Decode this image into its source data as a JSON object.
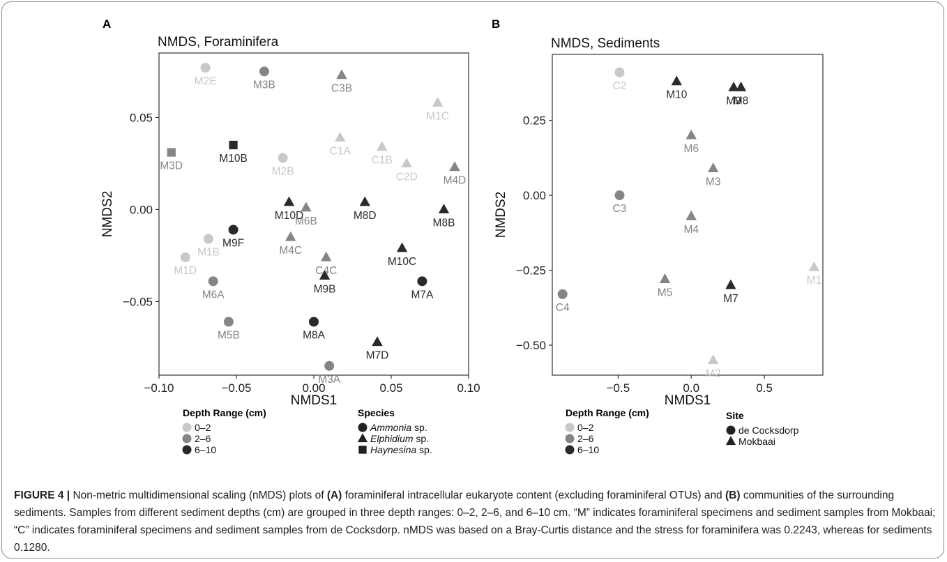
{
  "colors": {
    "depth_0_2": "#c8c8c8",
    "depth_2_6": "#858585",
    "depth_6_10": "#2a2a2a",
    "axis": "#000000"
  },
  "panel_a": {
    "letter": "A",
    "title": "NMDS, Foraminifera",
    "legend_depth_title": "Depth Range (cm)",
    "legend_depth_items": [
      "0–2",
      "2–6",
      "6–10"
    ],
    "legend_species_title": "Species",
    "legend_species_items": [
      {
        "italic": "Ammonia",
        "rest": " sp.",
        "shape": "circle"
      },
      {
        "italic": "Elphidium",
        "rest": " sp.",
        "shape": "triangle"
      },
      {
        "italic": "Haynesina",
        "rest": " sp.",
        "shape": "square"
      }
    ]
  },
  "panel_b": {
    "letter": "B",
    "title": "NMDS, Sediments",
    "legend_depth_title": "Depth Range (cm)",
    "legend_depth_items": [
      "0–2",
      "2–6",
      "6–10"
    ],
    "legend_site_title": "Site",
    "legend_site_items": [
      {
        "label": "de Cocksdorp",
        "shape": "circle"
      },
      {
        "label": "Mokbaai",
        "shape": "triangle"
      }
    ]
  },
  "chart_data": [
    {
      "type": "scatter",
      "title": "NMDS, Foraminifera",
      "xlabel": "NMDS1",
      "ylabel": "NMDS2",
      "xlim": [
        -0.1,
        0.1
      ],
      "ylim": [
        -0.09,
        0.085
      ],
      "xticks": [
        -0.1,
        -0.05,
        0.0,
        0.05,
        0.1
      ],
      "xtick_labels": [
        "−0.10",
        "−0.05",
        "0.00",
        "0.05",
        "0.10"
      ],
      "yticks": [
        -0.05,
        0.0,
        0.05
      ],
      "ytick_labels": [
        "−0.05",
        "0.00",
        "0.05"
      ],
      "grid": false,
      "points": [
        {
          "label": "M2E",
          "x": -0.07,
          "y": 0.077,
          "depth": "0-2",
          "shape": "circle"
        },
        {
          "label": "M3B",
          "x": -0.032,
          "y": 0.075,
          "depth": "2-6",
          "shape": "circle"
        },
        {
          "label": "C3B",
          "x": 0.018,
          "y": 0.073,
          "depth": "2-6",
          "shape": "triangle"
        },
        {
          "label": "M1C",
          "x": 0.08,
          "y": 0.058,
          "depth": "0-2",
          "shape": "triangle"
        },
        {
          "label": "M3D",
          "x": -0.092,
          "y": 0.031,
          "depth": "2-6",
          "shape": "square"
        },
        {
          "label": "M10B",
          "x": -0.052,
          "y": 0.035,
          "depth": "6-10",
          "shape": "square"
        },
        {
          "label": "M2B",
          "x": -0.02,
          "y": 0.028,
          "depth": "0-2",
          "shape": "circle"
        },
        {
          "label": "C1A",
          "x": 0.017,
          "y": 0.039,
          "depth": "0-2",
          "shape": "triangle"
        },
        {
          "label": "C1B",
          "x": 0.044,
          "y": 0.034,
          "depth": "0-2",
          "shape": "triangle"
        },
        {
          "label": "C2D",
          "x": 0.06,
          "y": 0.025,
          "depth": "0-2",
          "shape": "triangle"
        },
        {
          "label": "M4D",
          "x": 0.091,
          "y": 0.023,
          "depth": "2-6",
          "shape": "triangle"
        },
        {
          "label": "M10D",
          "x": -0.016,
          "y": 0.004,
          "depth": "6-10",
          "shape": "triangle"
        },
        {
          "label": "M6B",
          "x": -0.005,
          "y": 0.001,
          "depth": "2-6",
          "shape": "triangle"
        },
        {
          "label": "M8D",
          "x": 0.033,
          "y": 0.004,
          "depth": "6-10",
          "shape": "triangle"
        },
        {
          "label": "M8B",
          "x": 0.084,
          "y": 0.0,
          "depth": "6-10",
          "shape": "triangle"
        },
        {
          "label": "M9F",
          "x": -0.052,
          "y": -0.011,
          "depth": "6-10",
          "shape": "circle"
        },
        {
          "label": "M1B",
          "x": -0.068,
          "y": -0.016,
          "depth": "0-2",
          "shape": "circle"
        },
        {
          "label": "M4C",
          "x": -0.015,
          "y": -0.015,
          "depth": "2-6",
          "shape": "triangle"
        },
        {
          "label": "M10C",
          "x": 0.057,
          "y": -0.021,
          "depth": "6-10",
          "shape": "triangle"
        },
        {
          "label": "M1D",
          "x": -0.083,
          "y": -0.026,
          "depth": "0-2",
          "shape": "circle"
        },
        {
          "label": "C4C",
          "x": 0.008,
          "y": -0.026,
          "depth": "2-6",
          "shape": "triangle"
        },
        {
          "label": "M9B",
          "x": 0.007,
          "y": -0.036,
          "depth": "6-10",
          "shape": "triangle"
        },
        {
          "label": "M6A",
          "x": -0.065,
          "y": -0.039,
          "depth": "2-6",
          "shape": "circle"
        },
        {
          "label": "M7A",
          "x": 0.07,
          "y": -0.039,
          "depth": "6-10",
          "shape": "circle"
        },
        {
          "label": "M5B",
          "x": -0.055,
          "y": -0.061,
          "depth": "2-6",
          "shape": "circle"
        },
        {
          "label": "M8A",
          "x": 0.0,
          "y": -0.061,
          "depth": "6-10",
          "shape": "circle"
        },
        {
          "label": "M7D",
          "x": 0.041,
          "y": -0.072,
          "depth": "6-10",
          "shape": "triangle"
        },
        {
          "label": "M3A",
          "x": 0.01,
          "y": -0.085,
          "depth": "2-6",
          "shape": "circle"
        }
      ]
    },
    {
      "type": "scatter",
      "title": "NMDS, Sediments",
      "xlabel": "NMDS1",
      "ylabel": "NMDS2",
      "xlim": [
        -0.95,
        0.9
      ],
      "ylim": [
        -0.6,
        0.47
      ],
      "xticks": [
        -0.5,
        0.0,
        0.5
      ],
      "xtick_labels": [
        "−0.5",
        "0.0",
        "0.5"
      ],
      "yticks": [
        -0.5,
        -0.25,
        0.0,
        0.25
      ],
      "ytick_labels": [
        "−0.50",
        "−0.25",
        "0.00",
        "0.25"
      ],
      "grid": false,
      "points": [
        {
          "label": "C2",
          "x": -0.49,
          "y": 0.41,
          "depth": "0-2",
          "shape": "circle"
        },
        {
          "label": "M10",
          "x": -0.1,
          "y": 0.38,
          "depth": "6-10",
          "shape": "triangle"
        },
        {
          "label": "M9",
          "x": 0.29,
          "y": 0.36,
          "depth": "6-10",
          "shape": "triangle"
        },
        {
          "label": "M8",
          "x": 0.34,
          "y": 0.36,
          "depth": "6-10",
          "shape": "triangle"
        },
        {
          "label": "M6",
          "x": 0.0,
          "y": 0.2,
          "depth": "2-6",
          "shape": "triangle"
        },
        {
          "label": "M3",
          "x": 0.15,
          "y": 0.09,
          "depth": "2-6",
          "shape": "triangle"
        },
        {
          "label": "C3",
          "x": -0.49,
          "y": 0.0,
          "depth": "2-6",
          "shape": "circle"
        },
        {
          "label": "M4",
          "x": 0.0,
          "y": -0.07,
          "depth": "2-6",
          "shape": "triangle"
        },
        {
          "label": "M1",
          "x": 0.84,
          "y": -0.24,
          "depth": "0-2",
          "shape": "triangle"
        },
        {
          "label": "M5",
          "x": -0.18,
          "y": -0.28,
          "depth": "2-6",
          "shape": "triangle"
        },
        {
          "label": "M7",
          "x": 0.27,
          "y": -0.3,
          "depth": "6-10",
          "shape": "triangle"
        },
        {
          "label": "C4",
          "x": -0.88,
          "y": -0.33,
          "depth": "2-6",
          "shape": "circle"
        },
        {
          "label": "M2",
          "x": 0.15,
          "y": -0.55,
          "depth": "0-2",
          "shape": "triangle"
        }
      ]
    }
  ],
  "caption": {
    "lead": "FIGURE 4 |",
    "t1": " Non-metric multidimensional scaling (nMDS) plots of ",
    "a": "(A)",
    "t2": " foraminiferal intracellular eukaryote content (excluding foraminiferal OTUs) and ",
    "b": "(B)",
    "t3": " communities of the surrounding sediments. Samples from different sediment depths (cm) are grouped in three depth ranges: 0–2, 2–6, and 6–10 cm. “M” indicates foraminiferal specimens and sediment samples from Mokbaai; “C” indicates foraminiferal specimens and sediment samples from de Cocksdorp. nMDS was based on a Bray-Curtis distance and the stress for foraminifera was 0.2243, whereas for sediments 0.1280."
  }
}
